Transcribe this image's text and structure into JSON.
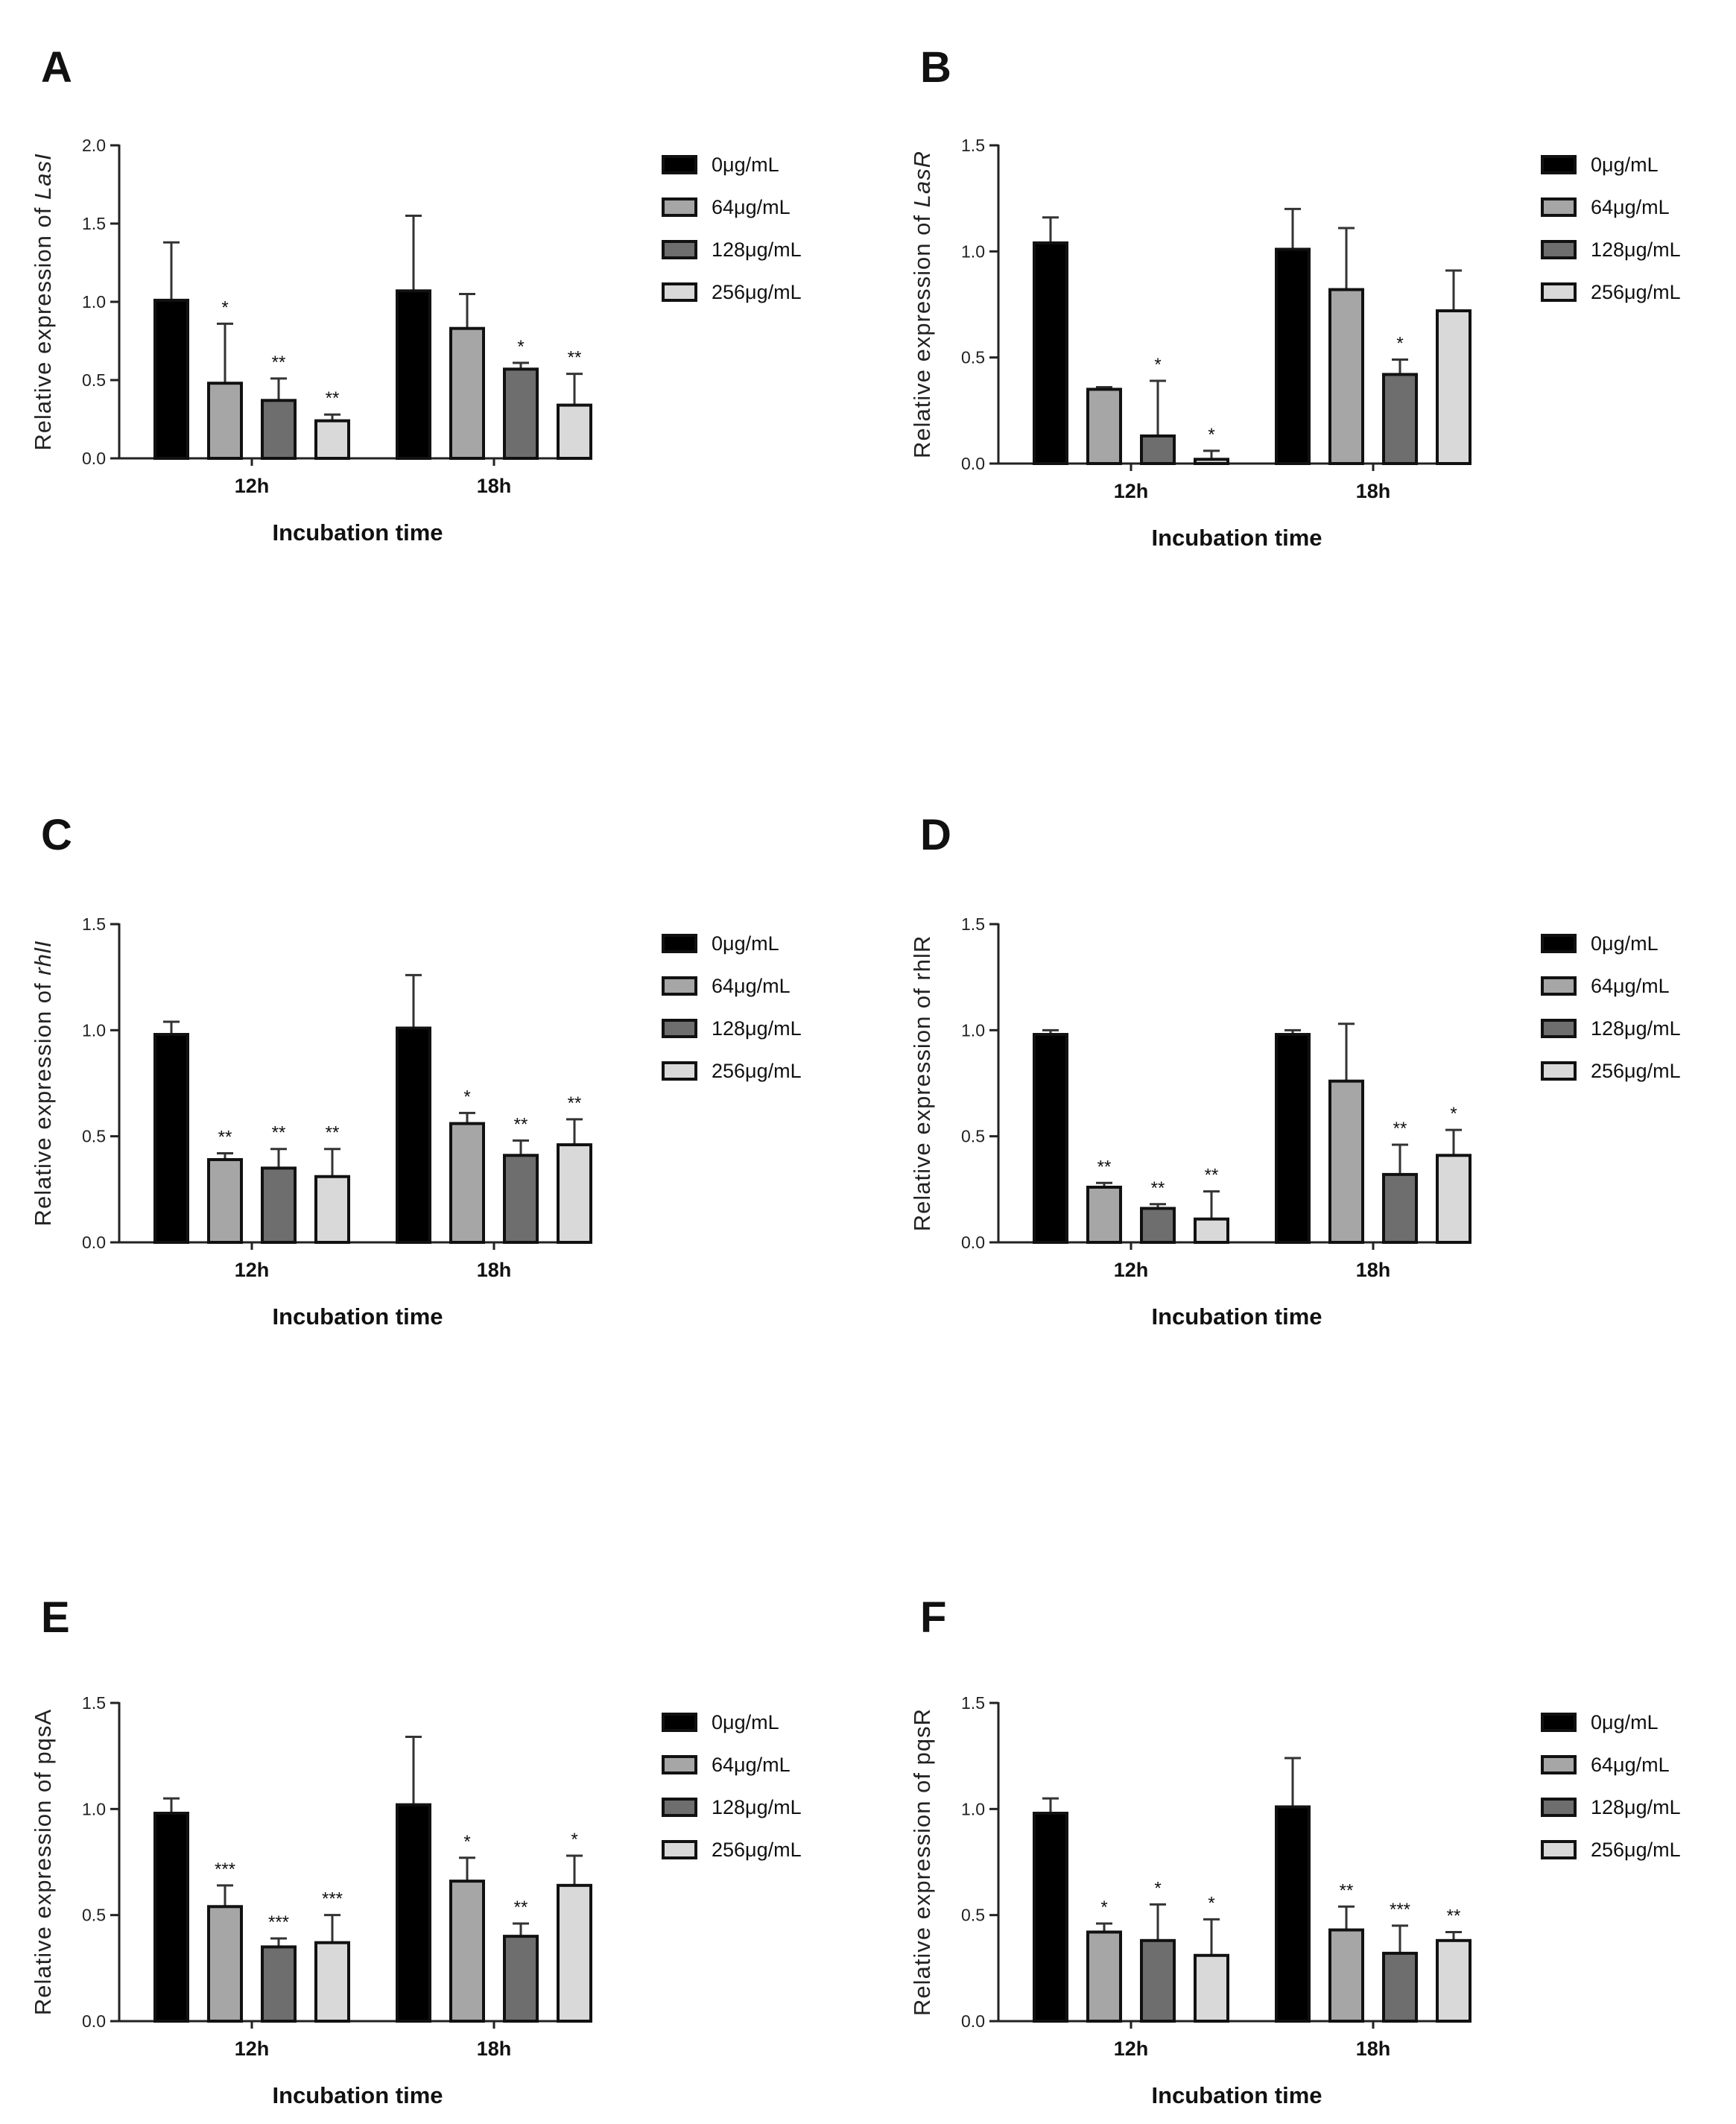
{
  "chart_data": [
    {
      "panel": "A",
      "type": "bar",
      "ylabel_prefix": "Relative expression of ",
      "ylabel_gene": "LasI",
      "gene_italic": true,
      "xlabel": "Incubation time",
      "categories": [
        "12h",
        "18h"
      ],
      "ylim": [
        0,
        2.0
      ],
      "yticks": [
        "0.0",
        "0.5",
        "1.0",
        "1.5",
        "2.0"
      ],
      "series": [
        {
          "name": "0μg/mL",
          "color": "#000000",
          "values": [
            1.01,
            1.07
          ],
          "errors": [
            0.37,
            0.48
          ],
          "sig": [
            "",
            ""
          ]
        },
        {
          "name": "64μg/mL",
          "color": "#a6a6a6",
          "values": [
            0.48,
            0.83
          ],
          "errors": [
            0.38,
            0.22
          ],
          "sig": [
            "*",
            ""
          ]
        },
        {
          "name": "128μg/mL",
          "color": "#6e6e6e",
          "values": [
            0.37,
            0.57
          ],
          "errors": [
            0.14,
            0.04
          ],
          "sig": [
            "**",
            "*"
          ]
        },
        {
          "name": "256μg/mL",
          "color": "#d9d9d9",
          "values": [
            0.24,
            0.34
          ],
          "errors": [
            0.04,
            0.2
          ],
          "sig": [
            "**",
            "**"
          ]
        }
      ]
    },
    {
      "panel": "B",
      "type": "bar",
      "ylabel_prefix": "Relative expression of ",
      "ylabel_gene": "LasR",
      "gene_italic": true,
      "xlabel": "Incubation time",
      "categories": [
        "12h",
        "18h"
      ],
      "ylim": [
        0,
        1.5
      ],
      "yticks": [
        "0.0",
        "0.5",
        "1.0",
        "1.5"
      ],
      "series": [
        {
          "name": "0μg/mL",
          "color": "#000000",
          "values": [
            1.04,
            1.01
          ],
          "errors": [
            0.12,
            0.19
          ],
          "sig": [
            "",
            ""
          ]
        },
        {
          "name": "64μg/mL",
          "color": "#a6a6a6",
          "values": [
            0.35,
            0.82
          ],
          "errors": [
            0.01,
            0.29
          ],
          "sig": [
            "",
            ""
          ]
        },
        {
          "name": "128μg/mL",
          "color": "#6e6e6e",
          "values": [
            0.13,
            0.42
          ],
          "errors": [
            0.26,
            0.07
          ],
          "sig": [
            "*",
            "*"
          ]
        },
        {
          "name": "256μg/mL",
          "color": "#d9d9d9",
          "values": [
            0.02,
            0.72
          ],
          "errors": [
            0.04,
            0.19
          ],
          "sig": [
            "*",
            ""
          ]
        }
      ]
    },
    {
      "panel": "C",
      "type": "bar",
      "ylabel_prefix": "Relative expression of ",
      "ylabel_gene": "rhlI",
      "gene_italic": true,
      "xlabel": "Incubation time",
      "categories": [
        "12h",
        "18h"
      ],
      "ylim": [
        0,
        1.5
      ],
      "yticks": [
        "0.0",
        "0.5",
        "1.0",
        "1.5"
      ],
      "series": [
        {
          "name": "0μg/mL",
          "color": "#000000",
          "values": [
            0.98,
            1.01
          ],
          "errors": [
            0.06,
            0.25
          ],
          "sig": [
            "",
            ""
          ]
        },
        {
          "name": "64μg/mL",
          "color": "#a6a6a6",
          "values": [
            0.39,
            0.56
          ],
          "errors": [
            0.03,
            0.05
          ],
          "sig": [
            "**",
            "*"
          ]
        },
        {
          "name": "128μg/mL",
          "color": "#6e6e6e",
          "values": [
            0.35,
            0.41
          ],
          "errors": [
            0.09,
            0.07
          ],
          "sig": [
            "**",
            "**"
          ]
        },
        {
          "name": "256μg/mL",
          "color": "#d9d9d9",
          "values": [
            0.31,
            0.46
          ],
          "errors": [
            0.13,
            0.12
          ],
          "sig": [
            "**",
            "**"
          ]
        }
      ]
    },
    {
      "panel": "D",
      "type": "bar",
      "ylabel_prefix": "Relative expression of ",
      "ylabel_gene": "rhlR",
      "gene_italic": false,
      "xlabel": "Incubation time",
      "categories": [
        "12h",
        "18h"
      ],
      "ylim": [
        0,
        1.5
      ],
      "yticks": [
        "0.0",
        "0.5",
        "1.0",
        "1.5"
      ],
      "series": [
        {
          "name": "0μg/mL",
          "color": "#000000",
          "values": [
            0.98,
            0.98
          ],
          "errors": [
            0.02,
            0.02
          ],
          "sig": [
            "",
            ""
          ]
        },
        {
          "name": "64μg/mL",
          "color": "#a6a6a6",
          "values": [
            0.26,
            0.76
          ],
          "errors": [
            0.02,
            0.27
          ],
          "sig": [
            "**",
            ""
          ]
        },
        {
          "name": "128μg/mL",
          "color": "#6e6e6e",
          "values": [
            0.16,
            0.32
          ],
          "errors": [
            0.02,
            0.14
          ],
          "sig": [
            "**",
            "**"
          ]
        },
        {
          "name": "256μg/mL",
          "color": "#d9d9d9",
          "values": [
            0.11,
            0.41
          ],
          "errors": [
            0.13,
            0.12
          ],
          "sig": [
            "**",
            "*"
          ]
        }
      ]
    },
    {
      "panel": "E",
      "type": "bar",
      "ylabel_prefix": "Relative expression of ",
      "ylabel_gene": "pqsA",
      "gene_italic": false,
      "xlabel": "Incubation time",
      "categories": [
        "12h",
        "18h"
      ],
      "ylim": [
        0,
        1.5
      ],
      "yticks": [
        "0.0",
        "0.5",
        "1.0",
        "1.5"
      ],
      "series": [
        {
          "name": "0μg/mL",
          "color": "#000000",
          "values": [
            0.98,
            1.02
          ],
          "errors": [
            0.07,
            0.32
          ],
          "sig": [
            "",
            ""
          ]
        },
        {
          "name": "64μg/mL",
          "color": "#a6a6a6",
          "values": [
            0.54,
            0.66
          ],
          "errors": [
            0.1,
            0.11
          ],
          "sig": [
            "***",
            "*"
          ]
        },
        {
          "name": "128μg/mL",
          "color": "#6e6e6e",
          "values": [
            0.35,
            0.4
          ],
          "errors": [
            0.04,
            0.06
          ],
          "sig": [
            "***",
            "**"
          ]
        },
        {
          "name": "256μg/mL",
          "color": "#d9d9d9",
          "values": [
            0.37,
            0.64
          ],
          "errors": [
            0.13,
            0.14
          ],
          "sig": [
            "***",
            "*"
          ]
        }
      ]
    },
    {
      "panel": "F",
      "type": "bar",
      "ylabel_prefix": "Relative expression of ",
      "ylabel_gene": "pqsR",
      "gene_italic": false,
      "xlabel": "Incubation time",
      "categories": [
        "12h",
        "18h"
      ],
      "ylim": [
        0,
        1.5
      ],
      "yticks": [
        "0.0",
        "0.5",
        "1.0",
        "1.5"
      ],
      "series": [
        {
          "name": "0μg/mL",
          "color": "#000000",
          "values": [
            0.98,
            1.01
          ],
          "errors": [
            0.07,
            0.23
          ],
          "sig": [
            "",
            ""
          ]
        },
        {
          "name": "64μg/mL",
          "color": "#a6a6a6",
          "values": [
            0.42,
            0.43
          ],
          "errors": [
            0.04,
            0.11
          ],
          "sig": [
            "*",
            "**"
          ]
        },
        {
          "name": "128μg/mL",
          "color": "#6e6e6e",
          "values": [
            0.38,
            0.32
          ],
          "errors": [
            0.17,
            0.13
          ],
          "sig": [
            "*",
            "***"
          ]
        },
        {
          "name": "256μg/mL",
          "color": "#d9d9d9",
          "values": [
            0.31,
            0.38
          ],
          "errors": [
            0.17,
            0.04
          ],
          "sig": [
            "*",
            "**"
          ]
        }
      ]
    }
  ]
}
